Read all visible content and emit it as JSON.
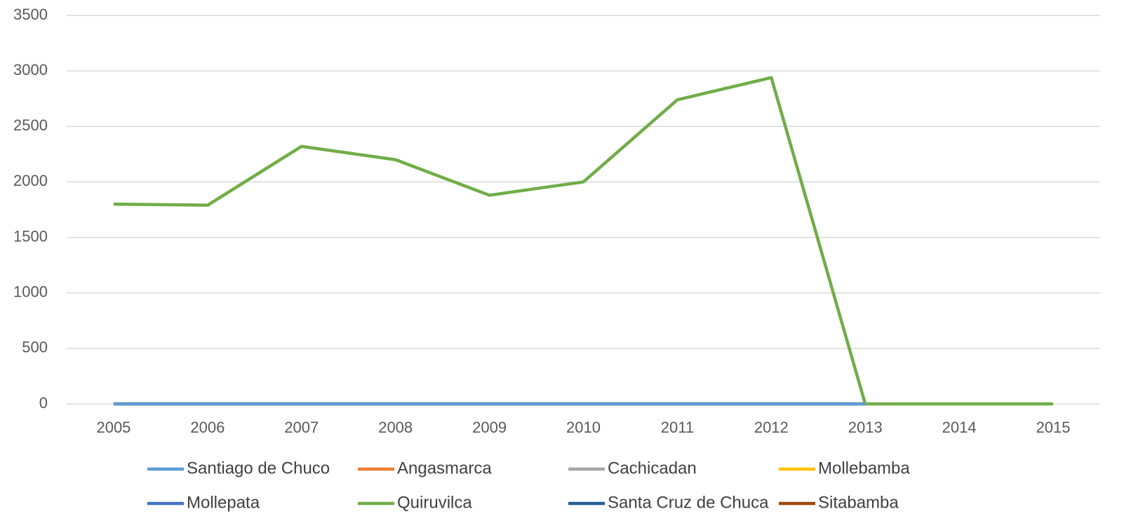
{
  "chart_data": {
    "type": "line",
    "categories": [
      "2005",
      "2006",
      "2007",
      "2008",
      "2009",
      "2010",
      "2011",
      "2012",
      "2013",
      "2014",
      "2015"
    ],
    "series": [
      {
        "name": "Santiago de Chuco",
        "color": "#5b9bd5",
        "values": [
          0,
          0,
          0,
          0,
          0,
          0,
          0,
          0,
          0,
          null,
          null
        ]
      },
      {
        "name": "Angasmarca",
        "color": "#ed7d31",
        "values": [
          0,
          0,
          0,
          0,
          0,
          0,
          0,
          0,
          0,
          null,
          null
        ]
      },
      {
        "name": "Cachicadan",
        "color": "#a5a5a5",
        "values": [
          0,
          0,
          0,
          0,
          0,
          0,
          0,
          0,
          0,
          null,
          null
        ]
      },
      {
        "name": "Mollebamba",
        "color": "#ffc000",
        "values": [
          0,
          0,
          0,
          0,
          0,
          0,
          0,
          0,
          0,
          null,
          null
        ]
      },
      {
        "name": "Mollepata",
        "color": "#4472c4",
        "values": [
          0,
          0,
          0,
          0,
          0,
          0,
          0,
          0,
          0,
          null,
          null
        ]
      },
      {
        "name": "Quiruvilca",
        "color": "#70ad47",
        "values": [
          1800,
          1790,
          2320,
          2200,
          1880,
          2000,
          2740,
          2940,
          0,
          0,
          0
        ]
      },
      {
        "name": "Santa Cruz de Chuca",
        "color": "#255e91",
        "values": [
          0,
          0,
          0,
          0,
          0,
          0,
          0,
          0,
          0,
          null,
          null
        ]
      },
      {
        "name": "Sitabamba",
        "color": "#9e480e",
        "values": [
          0,
          0,
          0,
          0,
          0,
          0,
          0,
          0,
          0,
          null,
          null
        ]
      }
    ],
    "ylim": [
      0,
      3500
    ],
    "yticks": [
      0,
      500,
      1000,
      1500,
      2000,
      2500,
      3000,
      3500
    ],
    "grid": true,
    "legend": "bottom"
  }
}
